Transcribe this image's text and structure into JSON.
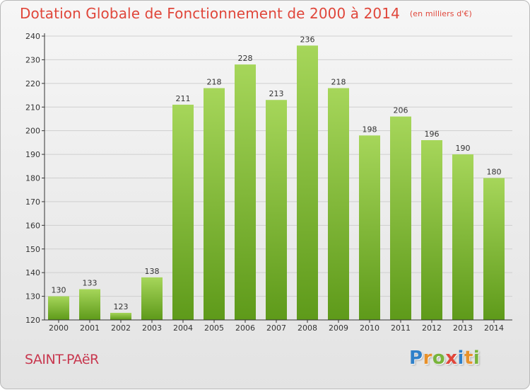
{
  "header": {
    "title": "Dotation Globale de Fonctionnement de 2000 à 2014",
    "subtitle": "(en milliers d'€)"
  },
  "footer": {
    "commune": "SAINT-PAëR",
    "logo_text": "Proxiti",
    "logo_colors": [
      "#2f80c9",
      "#e8912a",
      "#78b43a",
      "#e0463a",
      "#2f80c9",
      "#e8912a",
      "#78b43a"
    ]
  },
  "chart_data": {
    "type": "bar",
    "title": "Dotation Globale de Fonctionnement de 2000 à 2014",
    "subtitle": "(en milliers d'€)",
    "categories": [
      "2000",
      "2001",
      "2002",
      "2003",
      "2004",
      "2005",
      "2006",
      "2007",
      "2008",
      "2009",
      "2010",
      "2011",
      "2012",
      "2013",
      "2014"
    ],
    "values": [
      130,
      133,
      123,
      138,
      211,
      218,
      228,
      213,
      236,
      218,
      198,
      206,
      196,
      190,
      180
    ],
    "ylim": [
      120,
      240
    ],
    "yticks": [
      120,
      130,
      140,
      150,
      160,
      170,
      180,
      190,
      200,
      210,
      220,
      230,
      240
    ],
    "grid": true,
    "bar_color_top": "#a6d65a",
    "bar_color_bottom": "#5e9a1a",
    "axis_color": "#333333"
  }
}
